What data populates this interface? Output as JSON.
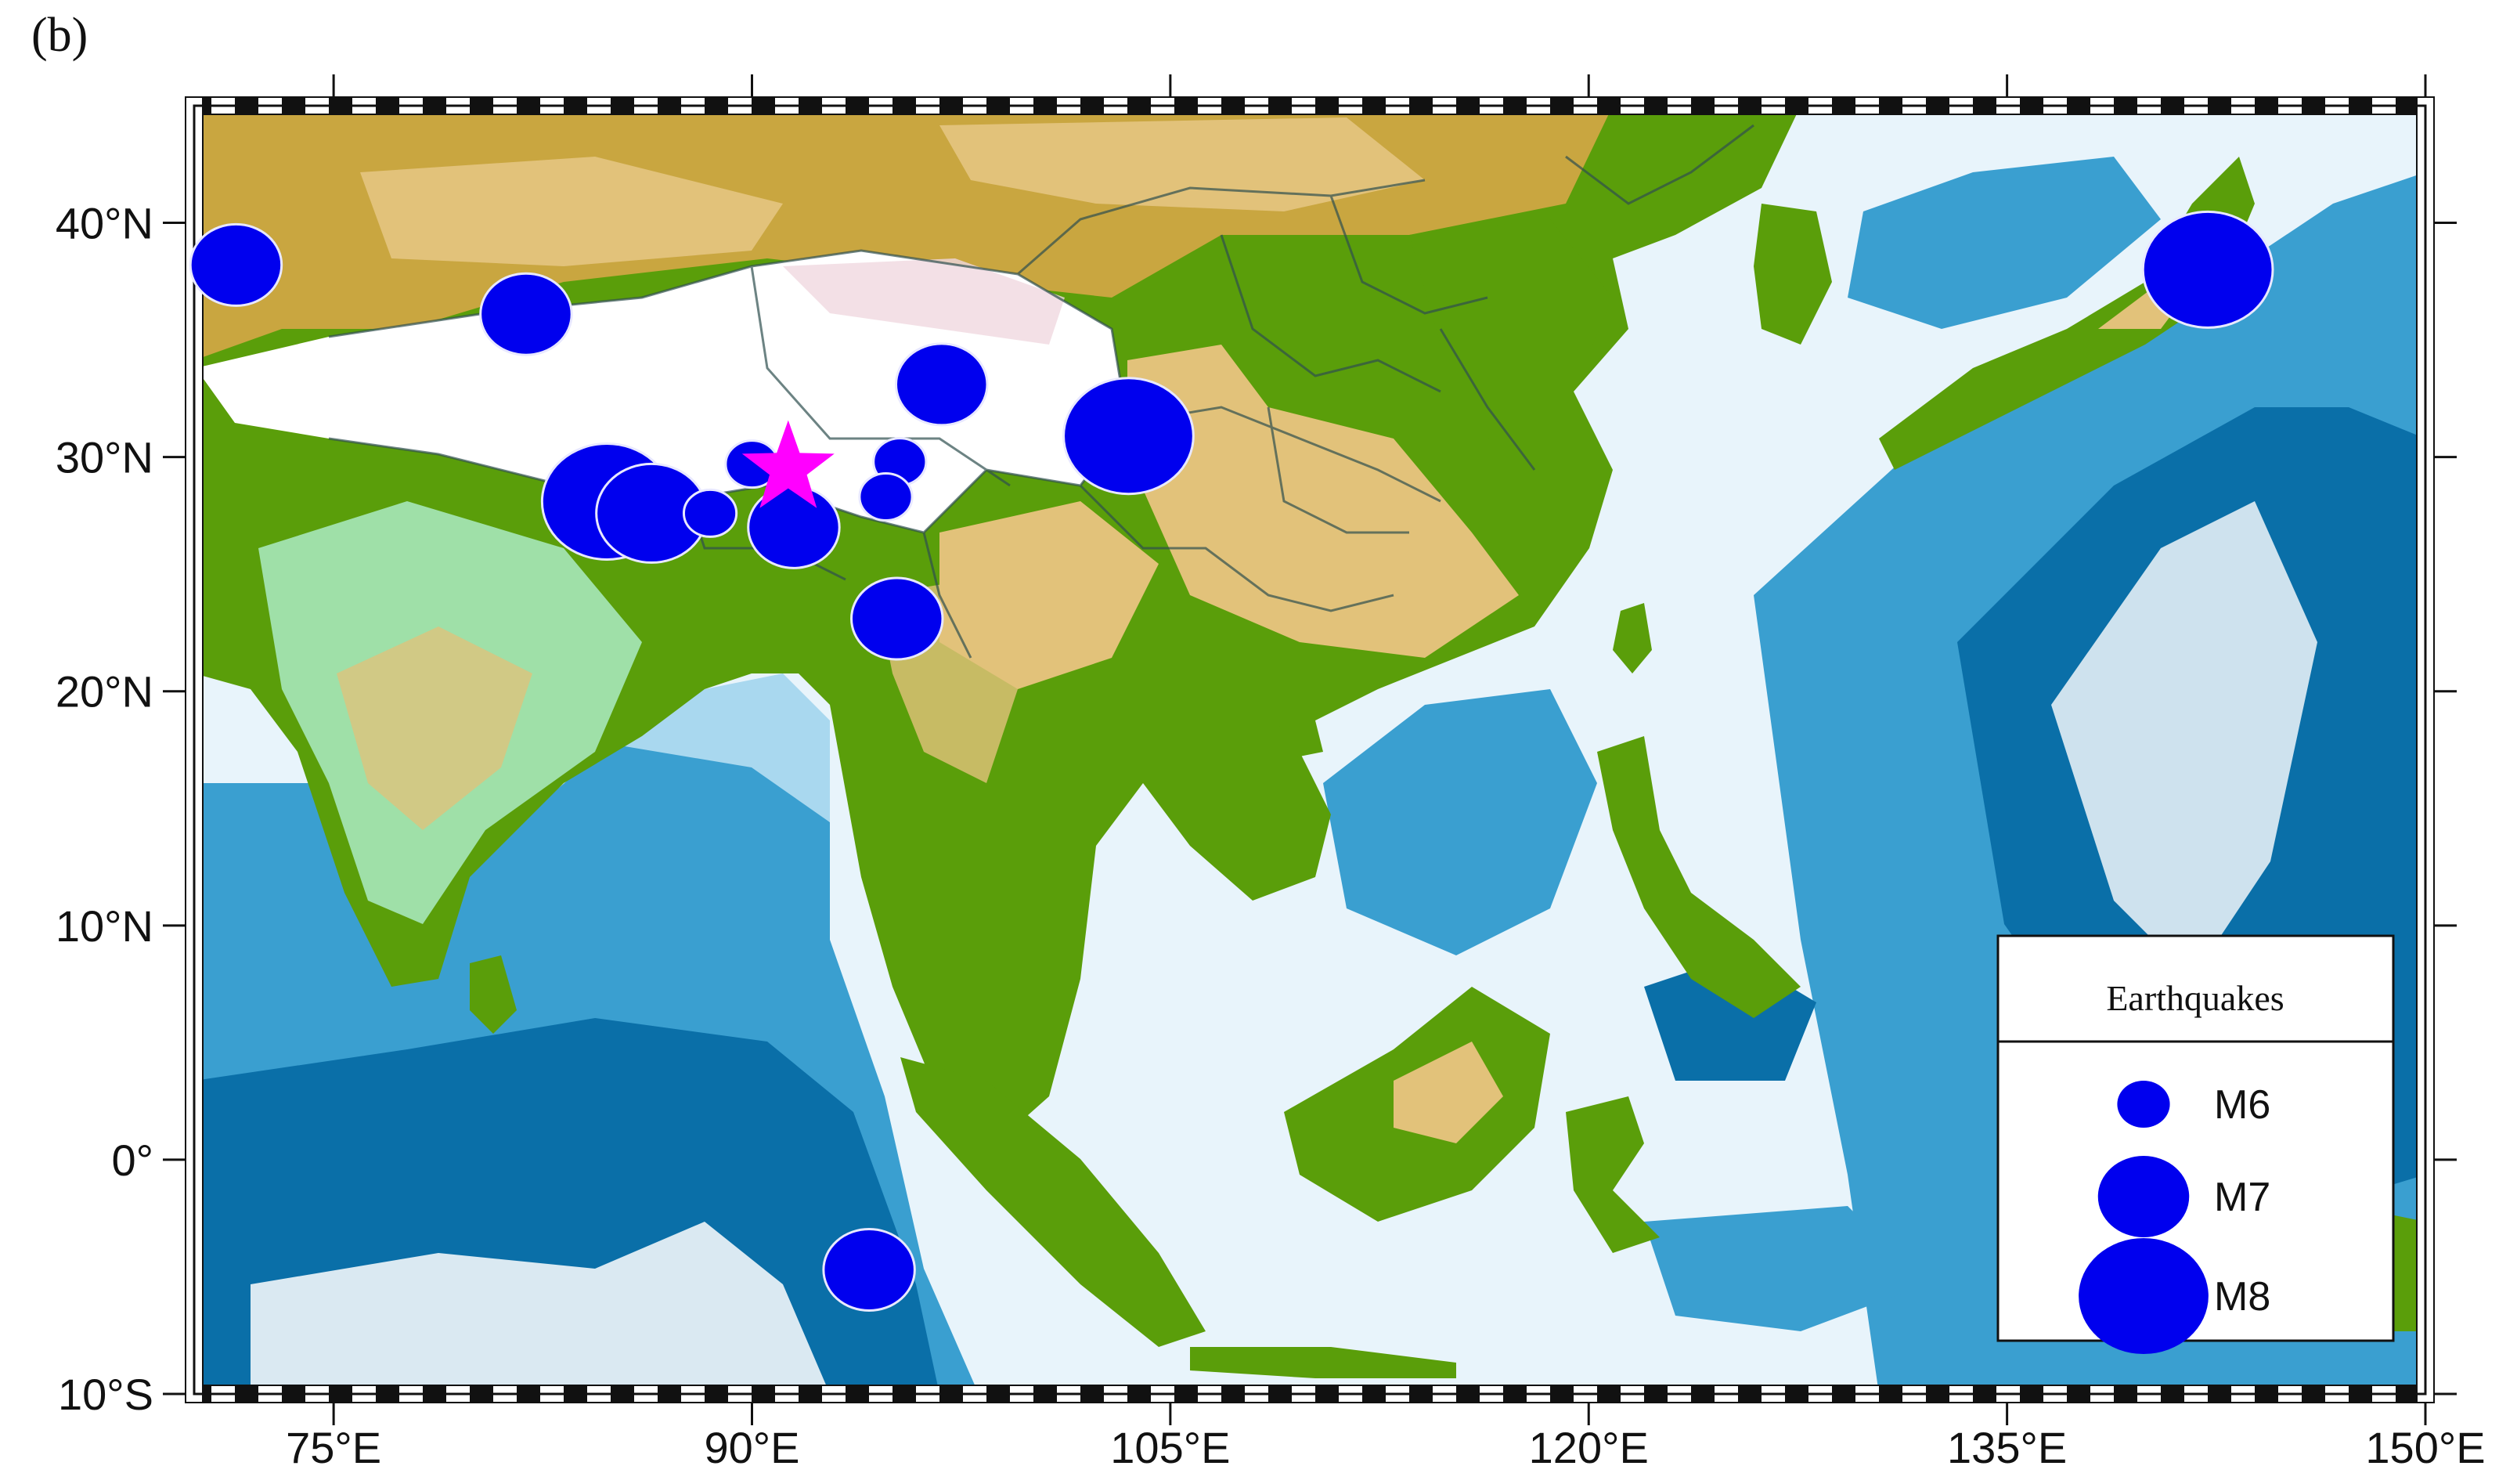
{
  "panel_label": "(b)",
  "map": {
    "extent": {
      "lon_min": 70,
      "lon_max": 150,
      "lat_min": -10,
      "lat_max": 45
    },
    "colors": {
      "ocean_deep": "#0a6fa8",
      "ocean_mid": "#3a9fd0",
      "ocean_shallow": "#a9d8ef",
      "ocean_shelf": "#e8f4fb",
      "lowland": "#5a9e0a",
      "plain_light": "#9fe0a8",
      "hills": "#e2c27a",
      "mountains": "#c9a640",
      "high_plateau": "#ffffff",
      "earthquake": "#0000ee",
      "epicenter_star": "#ff00ff"
    },
    "x_ticks": [
      {
        "lon": 75,
        "label": "75°E"
      },
      {
        "lon": 90,
        "label": "90°E"
      },
      {
        "lon": 105,
        "label": "105°E"
      },
      {
        "lon": 120,
        "label": "120°E"
      },
      {
        "lon": 135,
        "label": "135°E"
      },
      {
        "lon": 150,
        "label": "150°E"
      }
    ],
    "y_ticks": [
      {
        "lat": 40,
        "label": "40°N"
      },
      {
        "lat": 30,
        "label": "30°N"
      },
      {
        "lat": 20,
        "label": "20°N"
      },
      {
        "lat": 10,
        "label": "10°N"
      },
      {
        "lat": 0,
        "label": "0°"
      },
      {
        "lat": -10,
        "label": "10°S"
      }
    ],
    "earthquakes": [
      {
        "lon": 71.5,
        "lat": 38.2,
        "mag": 7
      },
      {
        "lon": 81.9,
        "lat": 36.1,
        "mag": 7
      },
      {
        "lon": 96.8,
        "lat": 33.1,
        "mag": 7
      },
      {
        "lon": 103.5,
        "lat": 30.9,
        "mag": 8
      },
      {
        "lon": 84.8,
        "lat": 28.1,
        "mag": 8
      },
      {
        "lon": 86.4,
        "lat": 27.6,
        "mag": 7.5
      },
      {
        "lon": 88.5,
        "lat": 27.6,
        "mag": 6
      },
      {
        "lon": 90.0,
        "lat": 29.7,
        "mag": 6
      },
      {
        "lon": 91.5,
        "lat": 27.0,
        "mag": 7
      },
      {
        "lon": 95.3,
        "lat": 29.8,
        "mag": 6
      },
      {
        "lon": 94.8,
        "lat": 28.3,
        "mag": 6
      },
      {
        "lon": 95.2,
        "lat": 23.1,
        "mag": 7
      },
      {
        "lon": 94.2,
        "lat": -4.7,
        "mag": 7
      },
      {
        "lon": 142.2,
        "lat": 38.0,
        "mag": 8
      }
    ],
    "epicenter": {
      "lon": 91.3,
      "lat": 29.5
    }
  },
  "legend": {
    "title": "Earthquakes",
    "entries": [
      {
        "label": "M6",
        "mag": 6
      },
      {
        "label": "M7",
        "mag": 7
      },
      {
        "label": "M8",
        "mag": 8
      }
    ]
  }
}
